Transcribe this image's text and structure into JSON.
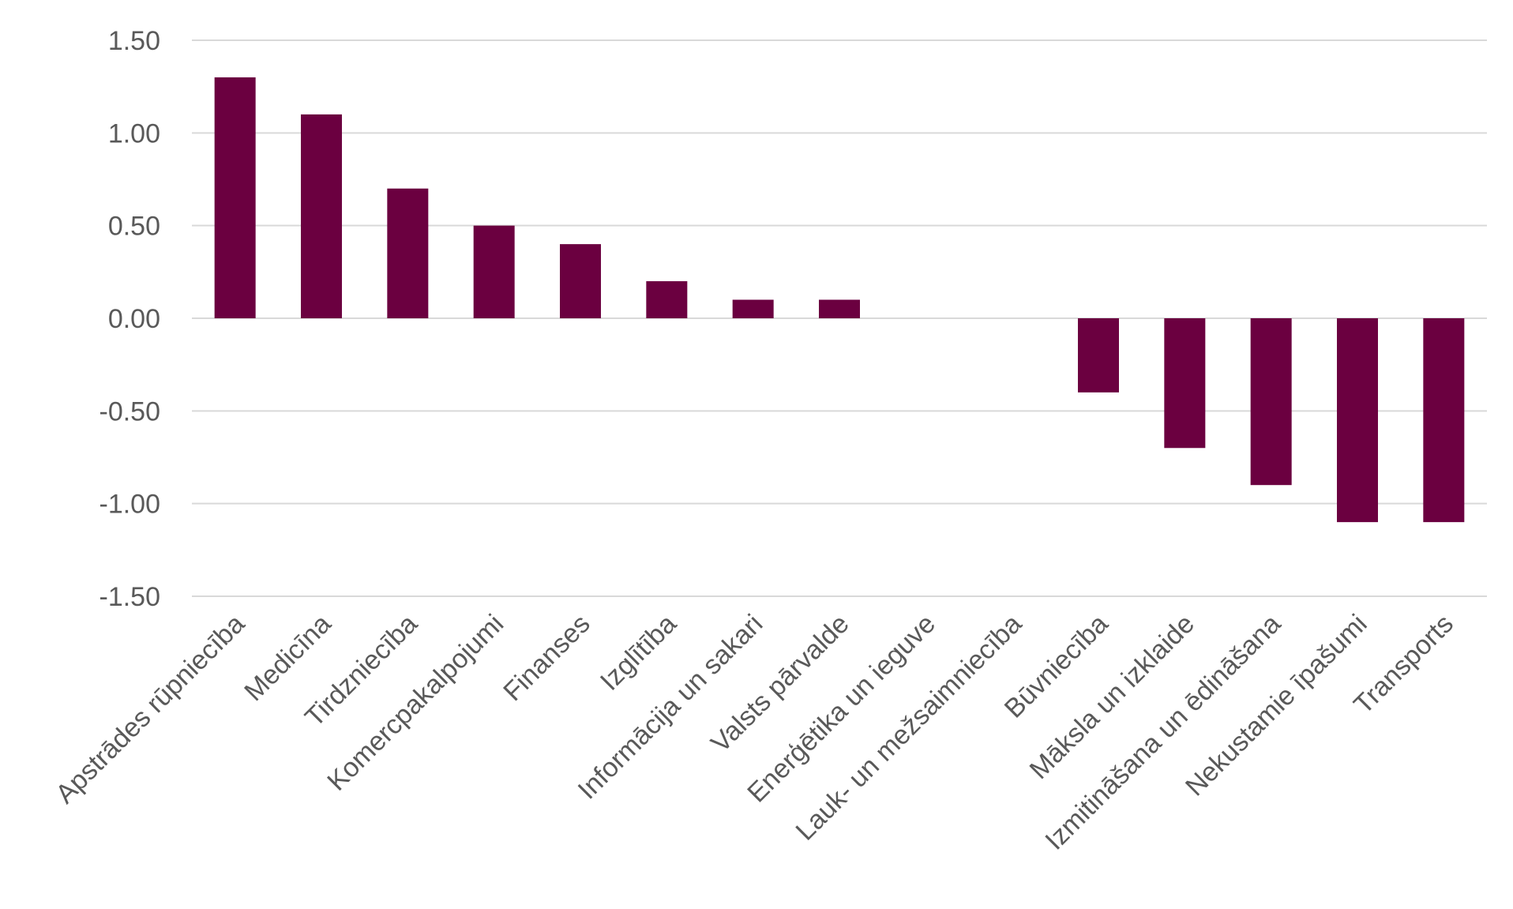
{
  "chart_data": {
    "type": "bar",
    "title": "",
    "xlabel": "",
    "ylabel": "",
    "ylim": [
      -1.5,
      1.5
    ],
    "yticks": [
      1.5,
      1.0,
      0.5,
      0.0,
      -0.5,
      -1.0,
      -1.5
    ],
    "ytick_labels": [
      "1.50",
      "1.00",
      "0.50",
      "0.00",
      "-0.50",
      "-1.00",
      "-1.50"
    ],
    "grid": true,
    "legend": "none",
    "bar_color": "#6b0040",
    "grid_color": "#d9d9d9",
    "text_color": "#595959",
    "categories": [
      "Apstrādes rūpniecība",
      "Medicīna",
      "Tirdzniecība",
      "Komercpakalpojumi",
      "Finanses",
      "Izglītība",
      "Informācija un sakari",
      "Valsts pārvalde",
      "Enerģētika un ieguve",
      "Lauk- un mežsaimniecība",
      "Būvniecība",
      "Māksla un izklaide",
      "Izmitināšana un ēdināšana",
      "Nekustamie īpašumi",
      "Transports"
    ],
    "values": [
      1.3,
      1.1,
      0.7,
      0.5,
      0.4,
      0.2,
      0.1,
      0.1,
      0.0,
      0.0,
      -0.4,
      -0.7,
      -0.9,
      -1.1,
      -1.1
    ]
  }
}
